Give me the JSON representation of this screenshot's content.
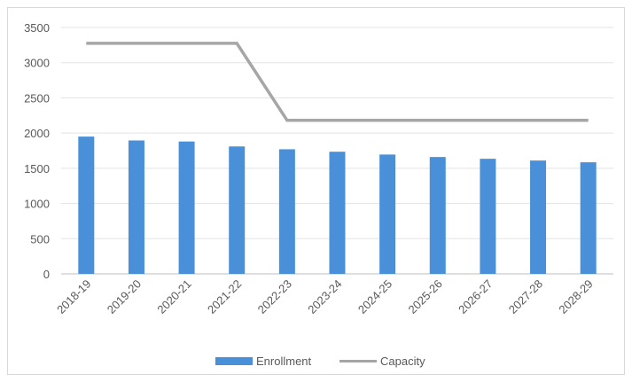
{
  "chart_data": {
    "type": "bar",
    "categories": [
      "2018-19",
      "2019-20",
      "2020-21",
      "2021-22",
      "2022-23",
      "2023-24",
      "2024-25",
      "2025-26",
      "2026-27",
      "2027-28",
      "2028-29"
    ],
    "series": [
      {
        "name": "Enrollment",
        "type": "bar",
        "color": "#4a90d9",
        "values": [
          1950,
          1895,
          1880,
          1810,
          1770,
          1735,
          1695,
          1660,
          1635,
          1610,
          1585
        ]
      },
      {
        "name": "Capacity",
        "type": "line",
        "color": "#a6a6a6",
        "values": [
          3275,
          3275,
          3275,
          3275,
          2180,
          2180,
          2180,
          2180,
          2180,
          2180,
          2180
        ]
      }
    ],
    "title": "",
    "xlabel": "",
    "ylabel": "",
    "ylim": [
      0,
      3500
    ],
    "yticks": [
      0,
      500,
      1000,
      1500,
      2000,
      2500,
      3000,
      3500
    ],
    "grid": "horizontal",
    "legend": "bottom"
  }
}
